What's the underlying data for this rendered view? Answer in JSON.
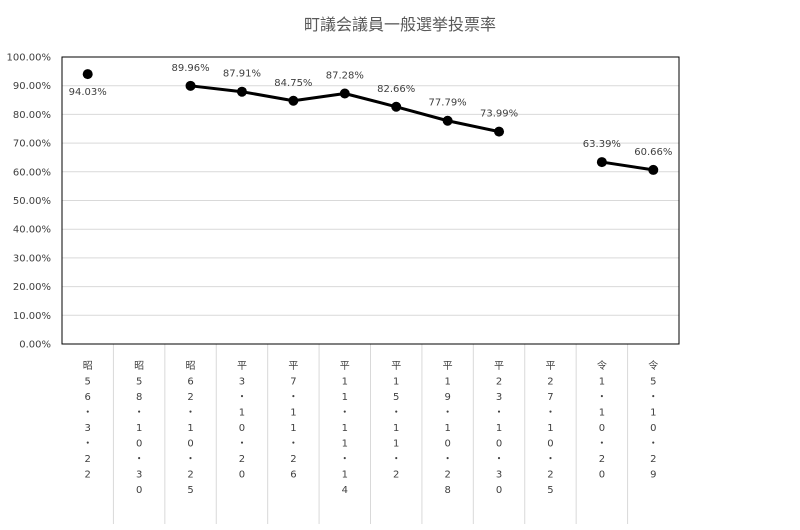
{
  "chart_data": {
    "type": "line",
    "title": "町議会議員一般選挙投票率",
    "xlabel": "",
    "ylabel": "",
    "ylim": [
      0,
      1
    ],
    "yticks": [
      0,
      0.1,
      0.2,
      0.3,
      0.4,
      0.5,
      0.6,
      0.7,
      0.8,
      0.9,
      1.0
    ],
    "ytick_labels": [
      "0.00%",
      "10.00%",
      "20.00%",
      "30.00%",
      "40.00%",
      "50.00%",
      "60.00%",
      "70.00%",
      "80.00%",
      "90.00%",
      "100.00%"
    ],
    "grid": true,
    "legend": "none",
    "categories": [
      "昭56.3.22",
      "昭58.10.30",
      "昭62.10.25",
      "平3.10.20",
      "平7.11.26",
      "平11.11.14",
      "平15.11.2",
      "平19.10.28",
      "平23.10.30",
      "平27.10.25",
      "令1.10.20",
      "令5.10.29"
    ],
    "x_tick_lines": [
      [
        "昭",
        "5",
        "6",
        "・",
        "3",
        "・",
        "2",
        "2"
      ],
      [
        "昭",
        "5",
        "8",
        "・",
        "1",
        "0",
        "・",
        "3",
        "0"
      ],
      [
        "昭",
        "6",
        "2",
        "・",
        "1",
        "0",
        "・",
        "2",
        "5"
      ],
      [
        "平",
        "3",
        "・",
        "1",
        "0",
        "・",
        "2",
        "0"
      ],
      [
        "平",
        "7",
        "・",
        "1",
        "1",
        "・",
        "2",
        "6"
      ],
      [
        "平",
        "1",
        "1",
        "・",
        "1",
        "1",
        "・",
        "1",
        "4"
      ],
      [
        "平",
        "1",
        "5",
        "・",
        "1",
        "1",
        "・",
        "2"
      ],
      [
        "平",
        "1",
        "9",
        "・",
        "1",
        "0",
        "・",
        "2",
        "8"
      ],
      [
        "平",
        "2",
        "3",
        "・",
        "1",
        "0",
        "・",
        "3",
        "0"
      ],
      [
        "平",
        "2",
        "7",
        "・",
        "1",
        "0",
        "・",
        "2",
        "5"
      ],
      [
        "令",
        "1",
        "・",
        "1",
        "0",
        "・",
        "2",
        "0"
      ],
      [
        "令",
        "5",
        "・",
        "1",
        "0",
        "・",
        "2",
        "9"
      ]
    ],
    "series": [
      {
        "values": [
          0.9403,
          null,
          0.8996,
          0.8791,
          0.8475,
          0.8728,
          0.8266,
          0.7779,
          0.7399,
          null,
          0.6339,
          0.6066
        ],
        "labels": [
          "94.03%",
          "",
          "89.96%",
          "87.91%",
          "84.75%",
          "87.28%",
          "82.66%",
          "77.79%",
          "73.99%",
          "",
          "63.39%",
          "60.66%"
        ],
        "label_positions": [
          "below",
          "",
          "above",
          "above",
          "above",
          "above",
          "above",
          "above",
          "above",
          "",
          "above",
          "above"
        ],
        "color": "#000000"
      }
    ],
    "colors": {
      "line": "#000000",
      "grid": "#d9d9d9",
      "axis": "#000000",
      "text": "#404040",
      "title": "#595959"
    }
  }
}
